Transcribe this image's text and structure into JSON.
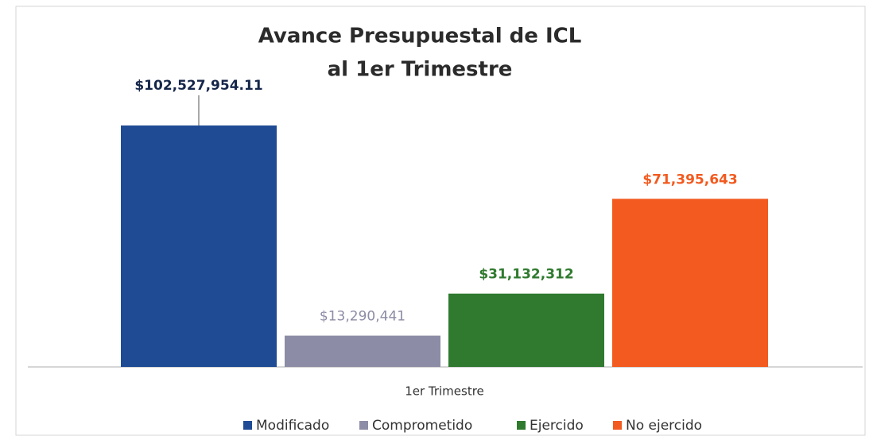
{
  "chart_data": {
    "type": "bar",
    "title": [
      "Avance Presupuestal de ICL",
      "al 1er Trimestre"
    ],
    "categories": [
      "1er Trimestre"
    ],
    "series": [
      {
        "name": "Modificado",
        "color": "#1f4b94",
        "label_color": "#15264a",
        "values": [
          102527954.11
        ],
        "value_labels": [
          "$102,527,954.11"
        ]
      },
      {
        "name": "Comprometido",
        "color": "#8d8ca6",
        "label_color": "#8d8ca6",
        "values": [
          13290441
        ],
        "value_labels": [
          "$13,290,441"
        ]
      },
      {
        "name": "Ejercido",
        "color": "#2f7a2f",
        "label_color": "#2f7a2f",
        "values": [
          31132312
        ],
        "value_labels": [
          "$31,132,312"
        ]
      },
      {
        "name": "No ejercido",
        "color": "#f25a1f",
        "label_color": "#f25a1f",
        "values": [
          71395643
        ],
        "value_labels": [
          "$71,395,643"
        ]
      }
    ],
    "legend": "bottom"
  }
}
